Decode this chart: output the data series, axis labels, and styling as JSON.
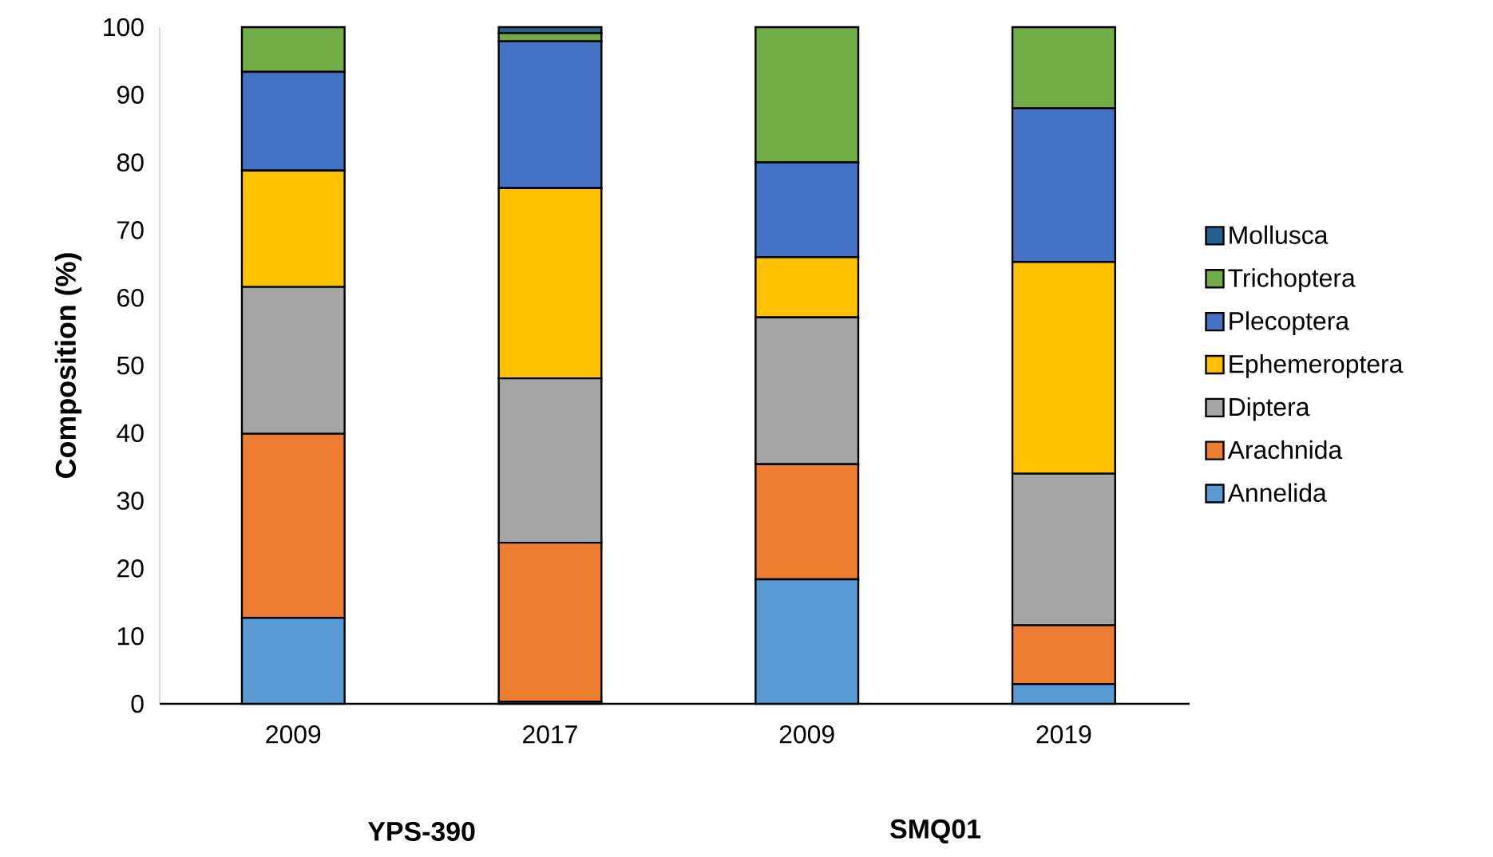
{
  "chart_data": {
    "type": "bar",
    "stacked": true,
    "ylabel": "Composition (%)",
    "categories": [
      "2009",
      "2017",
      "2009",
      "2019"
    ],
    "annotations": [
      "YPS-390",
      "SMQ01"
    ],
    "series": [
      {
        "name": "Annelida",
        "color": "#5b9bd5",
        "values": [
          12.7,
          0.3,
          18.4,
          2.9
        ]
      },
      {
        "name": "Arachnida",
        "color": "#ed7d31",
        "values": [
          27.2,
          23.5,
          17.0,
          8.7
        ]
      },
      {
        "name": "Diptera",
        "color": "#a5a5a5",
        "values": [
          21.7,
          24.3,
          21.7,
          22.4
        ]
      },
      {
        "name": "Ephemeroptera",
        "color": "#ffc000",
        "values": [
          17.2,
          28.1,
          8.9,
          31.3
        ]
      },
      {
        "name": "Plecoptera",
        "color": "#4472c4",
        "values": [
          14.6,
          21.7,
          14.0,
          22.7
        ]
      },
      {
        "name": "Trichoptera",
        "color": "#70ad47",
        "values": [
          6.6,
          1.2,
          20.0,
          12.0
        ]
      },
      {
        "name": "Mollusca",
        "color": "#255e91",
        "values": [
          0,
          0.9,
          0,
          0
        ]
      }
    ],
    "ylim": [
      0,
      100
    ],
    "yticks": [
      0,
      10,
      20,
      30,
      40,
      50,
      60,
      70,
      80,
      90,
      100
    ],
    "legend": "right"
  }
}
